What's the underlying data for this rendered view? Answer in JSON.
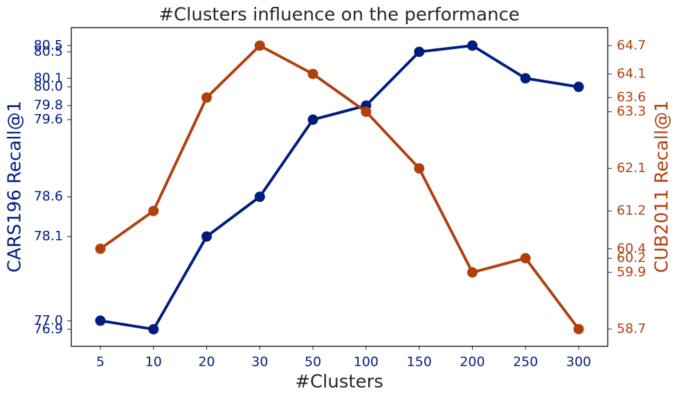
{
  "chart_data": {
    "type": "line",
    "title": "#Clusters influence on the performance",
    "x_label": "#Clusters",
    "y_label": "CARS196 Recall@1",
    "y2_label": "CUB2011 Recall@1",
    "categories": [
      "5",
      "10",
      "20",
      "30",
      "50",
      "100",
      "150",
      "200",
      "250",
      "300"
    ],
    "series": [
      {
        "name": "CARS196 Recall@1",
        "color": "#001c7f",
        "axis": "y",
        "values": [
          77.0,
          76.89,
          78.08,
          78.59,
          79.58,
          79.76,
          80.45,
          80.53,
          80.11,
          80.0
        ]
      },
      {
        "name": "CUB2011 Recall@1",
        "color": "#b1400d",
        "axis": "y2",
        "values": [
          60.4,
          61.2,
          63.6,
          64.7,
          64.1,
          63.3,
          62.1,
          59.9,
          60.2,
          58.7
        ]
      }
    ],
    "ylim": [
      76.68,
      80.76
    ],
    "yticks": [
      {
        "value": 76.89,
        "label": "76.9"
      },
      {
        "value": 77.0,
        "label": "77.0"
      },
      {
        "value": 78.08,
        "label": "78.1"
      },
      {
        "value": 78.59,
        "label": "78.6"
      },
      {
        "value": 79.58,
        "label": "79.6"
      },
      {
        "value": 79.76,
        "label": "79.8"
      },
      {
        "value": 80.0,
        "label": "80.0"
      },
      {
        "value": 80.11,
        "label": "80.1"
      },
      {
        "value": 80.45,
        "label": "80.5"
      },
      {
        "value": 80.53,
        "label": "80.5"
      }
    ],
    "y2lim": [
      58.35,
      65.08
    ],
    "y2ticks": [
      58.7,
      59.9,
      60.2,
      60.4,
      61.2,
      62.1,
      63.3,
      63.6,
      64.1,
      64.7
    ],
    "grid": false
  }
}
